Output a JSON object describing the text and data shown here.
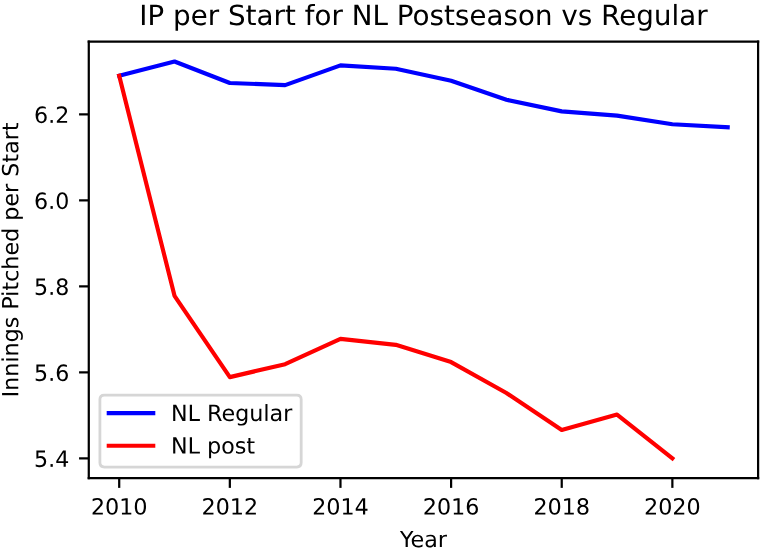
{
  "chart_data": {
    "type": "line",
    "title": "IP per Start for NL Postseason vs Regular",
    "xlabel": "Year",
    "ylabel": "Innings Pitched per Start",
    "xlim": [
      2009.45,
      2021.55
    ],
    "xticks": [
      2010,
      2012,
      2014,
      2016,
      2018,
      2020
    ],
    "ylim": [
      5.354,
      6.369
    ],
    "yticks": [
      {
        "value": 5.4,
        "label": "5.4"
      },
      {
        "value": 5.6,
        "label": "5.6"
      },
      {
        "value": 5.8,
        "label": "5.8"
      },
      {
        "value": 6.0,
        "label": "6.0"
      },
      {
        "value": 6.2,
        "label": "6.2"
      }
    ],
    "grid": false,
    "legend": "bottom left",
    "series": [
      {
        "name": "NL Regular",
        "color": "#0000ff",
        "x": [
          2010,
          2011,
          2012,
          2013,
          2014,
          2015,
          2016,
          2017,
          2018,
          2019,
          2020,
          2021
        ],
        "values": [
          6.29,
          6.323,
          6.273,
          6.268,
          6.314,
          6.306,
          6.278,
          6.234,
          6.207,
          6.197,
          6.177,
          6.17
        ]
      },
      {
        "name": "NL post",
        "color": "#ff0000",
        "x": [
          2010,
          2011,
          2012,
          2013,
          2014,
          2015,
          2016,
          2017,
          2018,
          2019,
          2020
        ],
        "values": [
          6.29,
          5.778,
          5.589,
          5.619,
          5.678,
          5.664,
          5.624,
          5.552,
          5.466,
          5.502,
          5.4
        ]
      }
    ]
  }
}
